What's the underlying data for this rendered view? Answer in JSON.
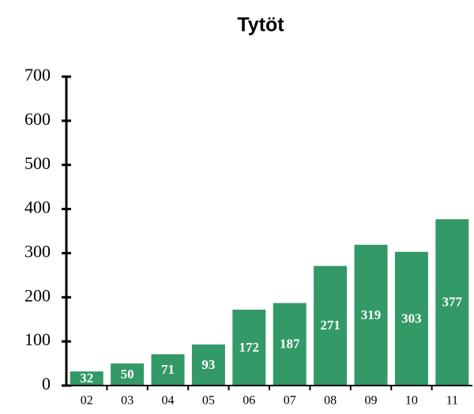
{
  "chart_data": {
    "type": "bar",
    "title": "Tytöt",
    "categories": [
      "02",
      "03",
      "04",
      "05",
      "06",
      "07",
      "08",
      "09",
      "10",
      "11"
    ],
    "values": [
      32,
      50,
      71,
      93,
      172,
      187,
      271,
      319,
      303,
      377
    ],
    "color": "#339966",
    "ylim": [
      0,
      700
    ],
    "yticks": [
      0,
      100,
      200,
      300,
      400,
      500,
      600,
      700
    ],
    "grid": false
  }
}
